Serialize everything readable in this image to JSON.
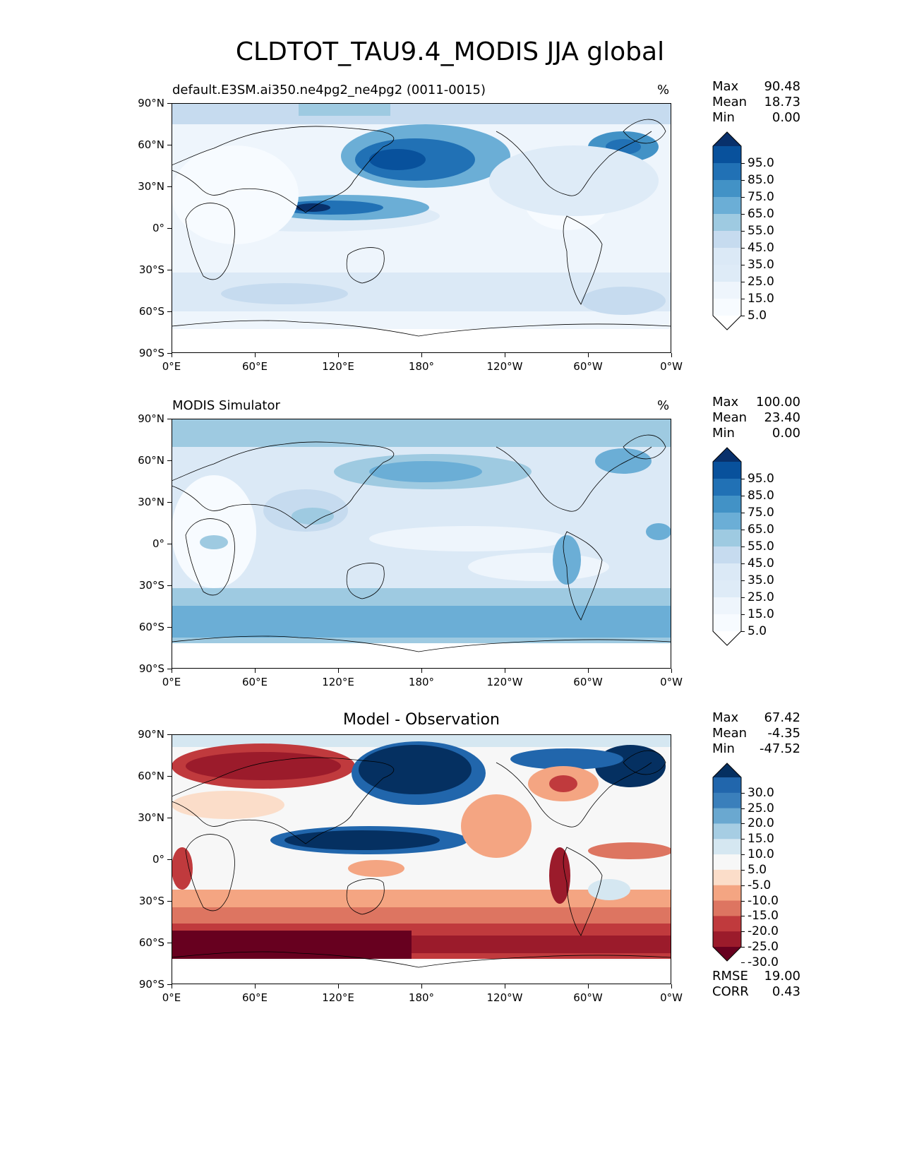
{
  "figure": {
    "title": "CLDTOT_TAU9.4_MODIS JJA global"
  },
  "axes": {
    "lat_ticks": [
      "90°N",
      "60°N",
      "30°N",
      "0°",
      "30°S",
      "60°S",
      "90°S"
    ],
    "lon_ticks": [
      "0°E",
      "60°E",
      "120°E",
      "180°",
      "120°W",
      "60°W",
      "0°W"
    ]
  },
  "panels": [
    {
      "id": "model",
      "left_title": "default.E3SM.ai350.ne4pg2_ne4pg2 (0011-0015)",
      "center_title": "",
      "units": "%",
      "stats": [
        {
          "label": "Max",
          "value": "90.48"
        },
        {
          "label": "Mean",
          "value": "18.73"
        },
        {
          "label": "Min",
          "value": "0.00"
        }
      ],
      "colorbar": {
        "labels": [
          "95.0",
          "85.0",
          "75.0",
          "65.0",
          "55.0",
          "45.0",
          "35.0",
          "25.0",
          "15.0",
          "5.0"
        ],
        "colors": [
          "#08306b",
          "#08519c",
          "#2171b5",
          "#4292c6",
          "#6baed6",
          "#9ecae1",
          "#c6dbef",
          "#dbe9f6",
          "#deebf7",
          "#eef5fc",
          "#f7fbff",
          "#ffffff"
        ]
      }
    },
    {
      "id": "obs",
      "left_title": "MODIS Simulator",
      "center_title": "",
      "units": "%",
      "stats": [
        {
          "label": "Max",
          "value": "100.00"
        },
        {
          "label": "Mean",
          "value": "23.40"
        },
        {
          "label": "Min",
          "value": "0.00"
        }
      ],
      "colorbar": {
        "labels": [
          "95.0",
          "85.0",
          "75.0",
          "65.0",
          "55.0",
          "45.0",
          "35.0",
          "25.0",
          "15.0",
          "5.0"
        ],
        "colors": [
          "#08306b",
          "#08519c",
          "#2171b5",
          "#4292c6",
          "#6baed6",
          "#9ecae1",
          "#c6dbef",
          "#dbe9f6",
          "#deebf7",
          "#eef5fc",
          "#f7fbff",
          "#ffffff"
        ]
      }
    },
    {
      "id": "diff",
      "left_title": "",
      "center_title": "Model - Observation",
      "units": "",
      "stats": [
        {
          "label": "Max",
          "value": "67.42"
        },
        {
          "label": "Mean",
          "value": "-4.35"
        },
        {
          "label": "Min",
          "value": "-47.52"
        }
      ],
      "bottom_stats": [
        {
          "label": "RMSE",
          "value": "19.00"
        },
        {
          "label": "CORR",
          "value": "0.43"
        }
      ],
      "colorbar": {
        "labels": [
          "30.0",
          "25.0",
          "20.0",
          "15.0",
          "10.0",
          "5.0",
          "-5.0",
          "-10.0",
          "-15.0",
          "-20.0",
          "-25.0",
          "-30.0"
        ],
        "colors": [
          "#053061",
          "#2166ac",
          "#3a7fbb",
          "#6aa8d0",
          "#a6cde3",
          "#d5e7f1",
          "#f7f7f7",
          "#fbddc9",
          "#f4a582",
          "#dd7561",
          "#c03a3d",
          "#9b1b2b",
          "#67001f"
        ]
      }
    }
  ]
}
